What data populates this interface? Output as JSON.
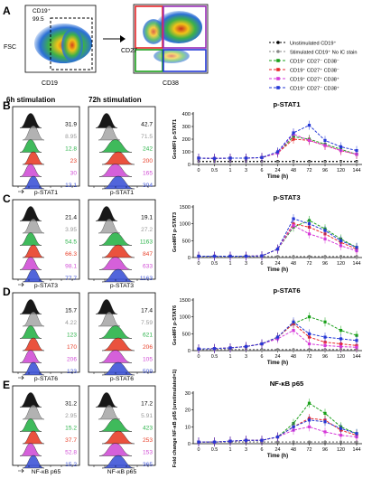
{
  "panelA": {
    "letter": "A",
    "gate_label": "CD19⁺",
    "gate_value": "99.5",
    "fsc": "FSC",
    "cd19": "CD19",
    "cd27": "CD27",
    "cd38": "CD38"
  },
  "legend": [
    {
      "label": "Unstimulated CD19⁺",
      "color": "#000000",
      "dash": "2,2",
      "marker": "circle"
    },
    {
      "label": "Stimulated CD19⁺ No IC stain",
      "color": "#888888",
      "dash": "2,2",
      "marker": "circle"
    },
    {
      "label": "CD19⁺ CD27⁻ CD38⁻",
      "color": "#1aa01a",
      "dash": "3,2",
      "marker": "square"
    },
    {
      "label": "CD19⁺ CD27⁺ CD38⁻",
      "color": "#e8262a",
      "dash": "3,2",
      "marker": "square"
    },
    {
      "label": "CD19⁺ CD27⁺ CD38⁺",
      "color": "#d63ad8",
      "dash": "3,2",
      "marker": "square"
    },
    {
      "label": "CD19⁺ CD27⁻ CD38⁺",
      "color": "#2438d6",
      "dash": "3,2",
      "marker": "square"
    }
  ],
  "colors": [
    "#000000",
    "#999999",
    "#2bb34a",
    "#e8402a",
    "#d14fd6",
    "#3f55d8"
  ],
  "headers": {
    "h6": "6h stimulation",
    "h72": "72h stimulation"
  },
  "rows": [
    {
      "letter": "B",
      "marker": "p-STAT1",
      "v6": [
        "31.9",
        "8.95",
        "12.8",
        "23",
        "30",
        "13.1"
      ],
      "v72": [
        "42.7",
        "71.5",
        "242",
        "200",
        "165",
        "304"
      ],
      "chart": {
        "title": "p-STAT1",
        "ylabel": "GeoMFI p-STAT1",
        "xlabel": "Time (h)",
        "yticks": [
          "0",
          "100",
          "200",
          "300",
          "400"
        ],
        "ymax": 400
      }
    },
    {
      "letter": "C",
      "marker": "p-STAT3",
      "v6": [
        "21.4",
        "3.95",
        "54.5",
        "66.3",
        "98.1",
        "77.7"
      ],
      "v72": [
        "19.1",
        "27.2",
        "1163",
        "847",
        "633",
        "1163"
      ],
      "chart": {
        "title": "p-STAT3",
        "ylabel": "GeoMFI p-STAT3",
        "xlabel": "Time (h)",
        "yticks": [
          "0",
          "500",
          "1000",
          "1500"
        ],
        "ymax": 1500
      }
    },
    {
      "letter": "D",
      "marker": "p-STAT6",
      "v6": [
        "15.7",
        "4.22",
        "123",
        "170",
        "206",
        "123"
      ],
      "v72": [
        "17.4",
        "7.59",
        "621",
        "206",
        "105",
        "509"
      ],
      "chart": {
        "title": "p-STAT6",
        "ylabel": "GeoMFI p-STAT6",
        "xlabel": "Time (h)",
        "yticks": [
          "0",
          "500",
          "1000",
          "1500"
        ],
        "ymax": 1500
      }
    },
    {
      "letter": "E",
      "marker": "NF-κB p65",
      "v6": [
        "31.2",
        "2.95",
        "15.2",
        "37.7",
        "52.8",
        "15.2"
      ],
      "v72": [
        "17.2",
        "5.91",
        "423",
        "253",
        "153",
        "365"
      ],
      "chart": {
        "title": "NF-κB p65",
        "ylabel": "Fold change NF-κB p65 (unstimulated=1)",
        "xlabel": "Time (h)",
        "yticks": [
          "0",
          "10",
          "20",
          "30"
        ],
        "ymax": 30
      }
    }
  ],
  "xticks": [
    "0",
    "0.5",
    "1",
    "3",
    "6",
    "24",
    "48",
    "72",
    "96",
    "120",
    "144"
  ],
  "chart_data": [
    {
      "type": "line",
      "title": "p-STAT1",
      "xlabel": "Time (h)",
      "ylabel": "GeoMFI p-STAT1",
      "ylim": [
        0,
        400
      ],
      "x": [
        "0",
        "0.5",
        "1",
        "3",
        "6",
        "24",
        "48",
        "72",
        "96",
        "120",
        "144"
      ],
      "series": [
        {
          "name": "Unstimulated CD19⁺",
          "values": [
            25,
            25,
            25,
            25,
            25,
            25,
            25,
            25,
            25,
            25,
            25
          ]
        },
        {
          "name": "Stimulated CD19⁺ No IC stain",
          "values": [
            20,
            20,
            20,
            20,
            20,
            20,
            20,
            20,
            20,
            20,
            20
          ]
        },
        {
          "name": "CD19⁺ CD27⁻ CD38⁻",
          "values": [
            50,
            48,
            50,
            50,
            55,
            90,
            220,
            200,
            160,
            120,
            80
          ]
        },
        {
          "name": "CD19⁺ CD27⁺ CD38⁻",
          "values": [
            50,
            48,
            50,
            50,
            55,
            90,
            200,
            190,
            150,
            110,
            80
          ]
        },
        {
          "name": "CD19⁺ CD27⁺ CD38⁺",
          "values": [
            50,
            48,
            50,
            50,
            55,
            90,
            240,
            190,
            150,
            110,
            80
          ]
        },
        {
          "name": "CD19⁺ CD27⁻ CD38⁺",
          "values": [
            50,
            48,
            50,
            50,
            55,
            100,
            250,
            310,
            190,
            140,
            110
          ]
        }
      ]
    },
    {
      "type": "line",
      "title": "p-STAT3",
      "xlabel": "Time (h)",
      "ylabel": "GeoMFI p-STAT3",
      "ylim": [
        0,
        1500
      ],
      "x": [
        "0",
        "0.5",
        "1",
        "3",
        "6",
        "24",
        "48",
        "72",
        "96",
        "120",
        "144"
      ],
      "series": [
        {
          "name": "Unstimulated CD19⁺",
          "values": [
            30,
            30,
            30,
            30,
            30,
            30,
            30,
            30,
            30,
            30,
            30
          ]
        },
        {
          "name": "Stimulated CD19⁺ No IC stain",
          "values": [
            25,
            25,
            25,
            25,
            25,
            25,
            25,
            25,
            25,
            25,
            25
          ]
        },
        {
          "name": "CD19⁺ CD27⁻ CD38⁻",
          "values": [
            40,
            40,
            40,
            40,
            50,
            250,
            900,
            1100,
            850,
            550,
            300
          ]
        },
        {
          "name": "CD19⁺ CD27⁺ CD38⁻",
          "values": [
            40,
            40,
            40,
            40,
            50,
            250,
            1000,
            900,
            700,
            450,
            250
          ]
        },
        {
          "name": "CD19⁺ CD27⁺ CD38⁺",
          "values": [
            40,
            40,
            40,
            40,
            50,
            250,
            950,
            700,
            550,
            350,
            200
          ]
        },
        {
          "name": "CD19⁺ CD27⁻ CD38⁺",
          "values": [
            40,
            40,
            40,
            40,
            50,
            250,
            1150,
            1000,
            800,
            500,
            300
          ]
        }
      ]
    },
    {
      "type": "line",
      "title": "p-STAT6",
      "xlabel": "Time (h)",
      "ylabel": "GeoMFI p-STAT6",
      "ylim": [
        0,
        1500
      ],
      "x": [
        "0",
        "0.5",
        "1",
        "3",
        "6",
        "24",
        "48",
        "72",
        "96",
        "120",
        "144"
      ],
      "series": [
        {
          "name": "Unstimulated CD19⁺",
          "values": [
            30,
            30,
            30,
            30,
            30,
            30,
            30,
            30,
            30,
            30,
            30
          ]
        },
        {
          "name": "Stimulated CD19⁺ No IC stain",
          "values": [
            25,
            25,
            25,
            25,
            25,
            25,
            25,
            25,
            25,
            25,
            25
          ]
        },
        {
          "name": "CD19⁺ CD27⁻ CD38⁻",
          "values": [
            50,
            60,
            80,
            120,
            200,
            400,
            800,
            1000,
            850,
            600,
            450
          ]
        },
        {
          "name": "CD19⁺ CD27⁺ CD38⁻",
          "values": [
            50,
            60,
            80,
            120,
            200,
            400,
            800,
            400,
            250,
            200,
            150
          ]
        },
        {
          "name": "CD19⁺ CD27⁺ CD38⁺",
          "values": [
            50,
            60,
            80,
            120,
            200,
            350,
            600,
            200,
            150,
            120,
            100
          ]
        },
        {
          "name": "CD19⁺ CD27⁻ CD38⁺",
          "values": [
            50,
            60,
            80,
            120,
            200,
            400,
            850,
            500,
            400,
            350,
            300
          ]
        }
      ]
    },
    {
      "type": "line",
      "title": "NF-κB p65",
      "xlabel": "Time (h)",
      "ylabel": "Fold change NF-κB p65 (unstimulated=1)",
      "ylim": [
        0,
        30
      ],
      "x": [
        "0",
        "0.5",
        "1",
        "3",
        "6",
        "24",
        "48",
        "72",
        "96",
        "120",
        "144"
      ],
      "series": [
        {
          "name": "Unstimulated CD19⁺",
          "values": [
            1,
            1,
            1,
            1,
            1,
            1,
            1,
            1,
            1,
            1,
            1
          ]
        },
        {
          "name": "Stimulated CD19⁺ No IC stain",
          "values": [
            1,
            1,
            1,
            1,
            1,
            1,
            1,
            1,
            1,
            1,
            1
          ]
        },
        {
          "name": "CD19⁺ CD27⁻ CD38⁻",
          "values": [
            1,
            1,
            1.5,
            2,
            2,
            4,
            12,
            24,
            18,
            10,
            6
          ]
        },
        {
          "name": "CD19⁺ CD27⁺ CD38⁻",
          "values": [
            1,
            1,
            1.5,
            2,
            2,
            4,
            10,
            15,
            14,
            8,
            5
          ]
        },
        {
          "name": "CD19⁺ CD27⁺ CD38⁺",
          "values": [
            1,
            1,
            1.5,
            2,
            2,
            4,
            8,
            10,
            7,
            5,
            4
          ]
        },
        {
          "name": "CD19⁺ CD27⁻ CD38⁺",
          "values": [
            1,
            1,
            1.5,
            2,
            2,
            4,
            10,
            14,
            13,
            9,
            6
          ]
        }
      ]
    }
  ]
}
